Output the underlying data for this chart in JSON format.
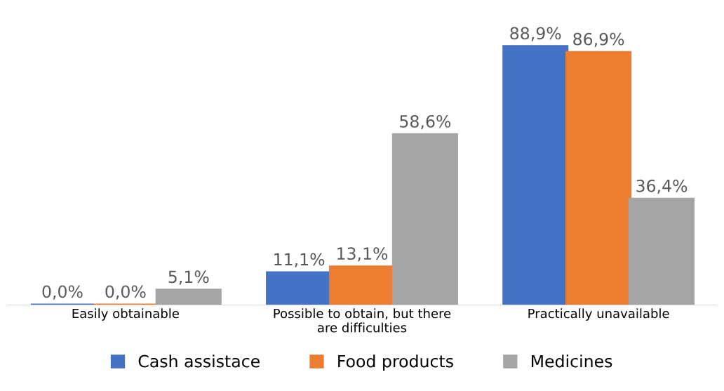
{
  "chart_data": {
    "type": "bar",
    "categories": [
      "Easily obtainable",
      "Possible to obtain, but there\nare difficulties",
      "Practically unavailable"
    ],
    "series": [
      {
        "name": "Cash assistace",
        "color": "#4472c4",
        "values": [
          0.0,
          11.1,
          88.9
        ],
        "value_labels": [
          "0,0%",
          "11,1%",
          "88,9%"
        ]
      },
      {
        "name": "Food products",
        "color": "#ed7d31",
        "values": [
          0.0,
          13.1,
          86.9
        ],
        "value_labels": [
          "0,0%",
          "13,1%",
          "86,9%"
        ]
      },
      {
        "name": "Medicines",
        "color": "#a5a5a5",
        "values": [
          5.1,
          58.6,
          36.4
        ],
        "value_labels": [
          "5,1%",
          "58,6%",
          "36,4%"
        ]
      }
    ],
    "legend": "bottom",
    "grid": false
  }
}
